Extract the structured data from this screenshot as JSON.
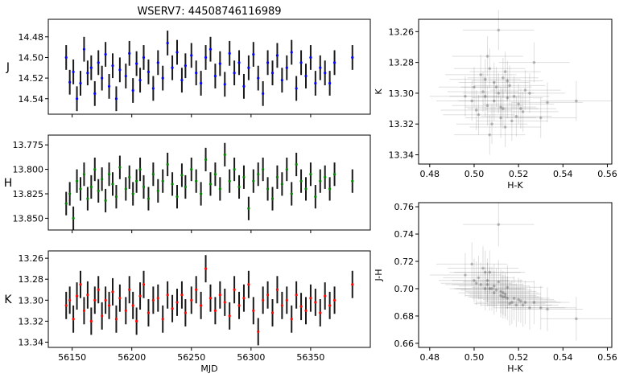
{
  "figure": {
    "title": "WSERV7: 44508746116989"
  },
  "chart_data": [
    {
      "id": "lc-j",
      "type": "scatter",
      "band": "J",
      "ylabel": "J",
      "xlabel": "",
      "xlim": [
        56130,
        56400
      ],
      "ylim": [
        14.555,
        14.463
      ],
      "inverted_y": true,
      "xticks": [
        56150,
        56200,
        56250,
        56300,
        56350
      ],
      "yticks": [
        14.48,
        14.5,
        14.52,
        14.54
      ],
      "ytick_labels": [
        "14.48",
        "14.50",
        "14.52",
        "14.54"
      ],
      "marker_color": "#0000ff",
      "errorbar_color": "#1a1a1a",
      "x": [
        56145,
        56148,
        56151,
        56154,
        56157,
        56160,
        56163,
        56166,
        56169,
        56172,
        56175,
        56178,
        56181,
        56184,
        56187,
        56190,
        56195,
        56198,
        56201,
        56204,
        56207,
        56210,
        56214,
        56218,
        56222,
        56226,
        56230,
        56234,
        56238,
        56242,
        56245,
        56250,
        56254,
        56258,
        56262,
        56266,
        56270,
        56274,
        56278,
        56282,
        56286,
        56290,
        56294,
        56298,
        56302,
        56306,
        56310,
        56314,
        56318,
        56322,
        56326,
        56330,
        56334,
        56338,
        56342,
        56346,
        56350,
        56354,
        56358,
        56362,
        56366,
        56370,
        56385
      ],
      "y": [
        14.5,
        14.524,
        14.514,
        14.54,
        14.525,
        14.492,
        14.515,
        14.51,
        14.535,
        14.505,
        14.52,
        14.497,
        14.528,
        14.508,
        14.54,
        14.512,
        14.518,
        14.496,
        14.532,
        14.506,
        14.522,
        14.5,
        14.514,
        14.53,
        14.505,
        14.52,
        14.486,
        14.51,
        14.495,
        14.522,
        14.508,
        14.498,
        14.515,
        14.525,
        14.5,
        14.492,
        14.518,
        14.506,
        14.526,
        14.496,
        14.515,
        14.505,
        14.528,
        14.51,
        14.497,
        14.52,
        14.535,
        14.505,
        14.515,
        14.498,
        14.522,
        14.51,
        14.495,
        14.53,
        14.505,
        14.518,
        14.5,
        14.525,
        14.51,
        14.515,
        14.525,
        14.505,
        14.5
      ],
      "yerr": 0.012
    },
    {
      "id": "lc-h",
      "type": "scatter",
      "band": "H",
      "ylabel": "H",
      "xlabel": "",
      "xlim": [
        56130,
        56400
      ],
      "ylim": [
        13.862,
        13.765
      ],
      "inverted_y": true,
      "xticks": [
        56150,
        56200,
        56250,
        56300,
        56350
      ],
      "yticks": [
        13.775,
        13.8,
        13.825,
        13.85
      ],
      "ytick_labels": [
        "13.775",
        "13.800",
        "13.825",
        "13.850"
      ],
      "marker_color": "#008000",
      "errorbar_color": "#1a1a1a",
      "x": [
        56145,
        56148,
        56151,
        56154,
        56157,
        56160,
        56163,
        56166,
        56169,
        56172,
        56175,
        56178,
        56181,
        56184,
        56187,
        56190,
        56195,
        56198,
        56201,
        56204,
        56207,
        56210,
        56214,
        56218,
        56222,
        56226,
        56230,
        56234,
        56238,
        56242,
        56245,
        56250,
        56254,
        56258,
        56262,
        56266,
        56270,
        56274,
        56278,
        56282,
        56286,
        56290,
        56294,
        56298,
        56302,
        56306,
        56310,
        56314,
        56318,
        56322,
        56326,
        56330,
        56334,
        56338,
        56342,
        56346,
        56350,
        56354,
        56358,
        56362,
        56366,
        56370,
        56385
      ],
      "y": [
        13.835,
        13.825,
        13.85,
        13.812,
        13.82,
        13.805,
        13.83,
        13.818,
        13.8,
        13.822,
        13.81,
        13.832,
        13.805,
        13.815,
        13.828,
        13.798,
        13.82,
        13.808,
        13.825,
        13.812,
        13.8,
        13.818,
        13.83,
        13.805,
        13.822,
        13.812,
        13.795,
        13.815,
        13.828,
        13.806,
        13.818,
        13.8,
        13.812,
        13.825,
        13.79,
        13.815,
        13.805,
        13.82,
        13.785,
        13.812,
        13.8,
        13.818,
        13.808,
        13.84,
        13.812,
        13.805,
        13.8,
        13.82,
        13.83,
        13.808,
        13.815,
        13.8,
        13.825,
        13.795,
        13.812,
        13.82,
        13.805,
        13.828,
        13.812,
        13.808,
        13.82,
        13.805,
        13.812
      ],
      "yerr": 0.012
    },
    {
      "id": "lc-k",
      "type": "scatter",
      "band": "K",
      "ylabel": "K",
      "xlabel": "MJD",
      "xlim": [
        56130,
        56400
      ],
      "ylim": [
        13.345,
        13.253
      ],
      "inverted_y": true,
      "xticks": [
        56150,
        56200,
        56250,
        56300,
        56350
      ],
      "xtick_labels": [
        "56150",
        "56200",
        "56250",
        "56300",
        "56350"
      ],
      "yticks": [
        13.26,
        13.28,
        13.3,
        13.32,
        13.34
      ],
      "ytick_labels": [
        "13.26",
        "13.28",
        "13.30",
        "13.32",
        "13.34"
      ],
      "marker_color": "#ff0000",
      "errorbar_color": "#1a1a1a",
      "x": [
        56145,
        56148,
        56151,
        56154,
        56157,
        56160,
        56163,
        56166,
        56169,
        56172,
        56175,
        56178,
        56181,
        56184,
        56187,
        56190,
        56195,
        56198,
        56201,
        56204,
        56207,
        56210,
        56214,
        56218,
        56222,
        56226,
        56230,
        56234,
        56238,
        56242,
        56245,
        56250,
        56254,
        56258,
        56262,
        56266,
        56270,
        56274,
        56278,
        56282,
        56286,
        56290,
        56294,
        56298,
        56302,
        56306,
        56310,
        56314,
        56318,
        56322,
        56326,
        56330,
        56334,
        56338,
        56342,
        56346,
        56350,
        56354,
        56358,
        56362,
        56366,
        56370,
        56385
      ],
      "y": [
        13.305,
        13.3,
        13.318,
        13.296,
        13.285,
        13.31,
        13.295,
        13.32,
        13.3,
        13.29,
        13.315,
        13.3,
        13.305,
        13.292,
        13.318,
        13.298,
        13.31,
        13.29,
        13.305,
        13.32,
        13.296,
        13.285,
        13.312,
        13.3,
        13.298,
        13.318,
        13.295,
        13.308,
        13.302,
        13.295,
        13.312,
        13.3,
        13.29,
        13.305,
        13.27,
        13.298,
        13.31,
        13.295,
        13.302,
        13.315,
        13.29,
        13.305,
        13.298,
        13.285,
        13.31,
        13.33,
        13.3,
        13.295,
        13.312,
        13.29,
        13.305,
        13.3,
        13.318,
        13.295,
        13.306,
        13.31,
        13.298,
        13.302,
        13.312,
        13.296,
        13.305,
        13.3,
        13.285
      ],
      "yerr": 0.013
    },
    {
      "id": "cm-k-hk",
      "type": "scatter",
      "xlabel": "H-K",
      "ylabel": "K",
      "xlim": [
        0.475,
        0.562
      ],
      "ylim": [
        13.346,
        13.252
      ],
      "inverted_y": true,
      "xticks": [
        0.48,
        0.5,
        0.52,
        0.54,
        0.56
      ],
      "xtick_labels": [
        "0.48",
        "0.50",
        "0.52",
        "0.54",
        "0.56"
      ],
      "yticks": [
        13.26,
        13.28,
        13.3,
        13.32,
        13.34
      ],
      "ytick_labels": [
        "13.26",
        "13.28",
        "13.30",
        "13.32",
        "13.34"
      ],
      "marker_color": "#000000",
      "x": [
        0.496,
        0.5,
        0.503,
        0.505,
        0.507,
        0.509,
        0.511,
        0.513,
        0.515,
        0.517,
        0.52,
        0.522,
        0.525,
        0.502,
        0.506,
        0.51,
        0.514,
        0.518,
        0.508,
        0.512,
        0.516,
        0.504,
        0.521,
        0.499,
        0.527,
        0.511,
        0.533,
        0.506,
        0.514,
        0.546,
        0.513,
        0.519,
        0.501,
        0.509,
        0.523,
        0.53,
        0.515,
        0.507,
        0.512,
        0.505
      ],
      "y": [
        13.302,
        13.296,
        13.288,
        13.291,
        13.284,
        13.305,
        13.3,
        13.31,
        13.292,
        13.318,
        13.307,
        13.312,
        13.3,
        13.314,
        13.308,
        13.296,
        13.286,
        13.302,
        13.32,
        13.316,
        13.295,
        13.299,
        13.31,
        13.305,
        13.28,
        13.259,
        13.306,
        13.276,
        13.322,
        13.305,
        13.29,
        13.315,
        13.311,
        13.293,
        13.298,
        13.316,
        13.303,
        13.327,
        13.309,
        13.302
      ],
      "xerr": 0.016,
      "yerr": 0.013
    },
    {
      "id": "cc-jh-hk",
      "type": "scatter",
      "xlabel": "H-K",
      "ylabel": "J-H",
      "xlim": [
        0.475,
        0.562
      ],
      "ylim": [
        0.657,
        0.763
      ],
      "xticks": [
        0.48,
        0.5,
        0.52,
        0.54,
        0.56
      ],
      "xtick_labels": [
        "0.48",
        "0.50",
        "0.52",
        "0.54",
        "0.56"
      ],
      "yticks": [
        0.66,
        0.68,
        0.7,
        0.72,
        0.74,
        0.76
      ],
      "ytick_labels": [
        "0.66",
        "0.68",
        "0.70",
        "0.72",
        "0.74",
        "0.76"
      ],
      "marker_color": "#000000",
      "x": [
        0.496,
        0.5,
        0.503,
        0.505,
        0.507,
        0.509,
        0.511,
        0.513,
        0.515,
        0.517,
        0.52,
        0.522,
        0.525,
        0.502,
        0.506,
        0.51,
        0.514,
        0.518,
        0.508,
        0.512,
        0.516,
        0.504,
        0.521,
        0.499,
        0.527,
        0.511,
        0.533,
        0.506,
        0.514,
        0.546,
        0.513,
        0.519,
        0.501,
        0.509,
        0.523,
        0.53,
        0.515,
        0.507,
        0.512,
        0.505
      ],
      "y": [
        0.71,
        0.706,
        0.703,
        0.712,
        0.7,
        0.697,
        0.705,
        0.694,
        0.701,
        0.69,
        0.692,
        0.688,
        0.686,
        0.708,
        0.703,
        0.699,
        0.696,
        0.693,
        0.7,
        0.695,
        0.689,
        0.715,
        0.691,
        0.718,
        0.69,
        0.747,
        0.685,
        0.706,
        0.694,
        0.678,
        0.697,
        0.688,
        0.704,
        0.702,
        0.69,
        0.686,
        0.693,
        0.712,
        0.698,
        0.7
      ],
      "xerr": 0.016,
      "yerr": 0.016
    }
  ]
}
